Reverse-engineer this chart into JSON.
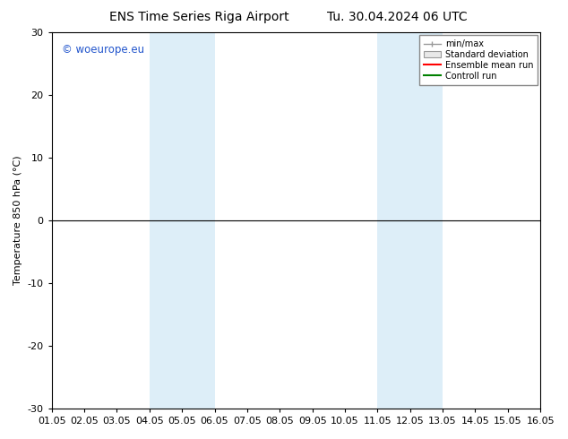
{
  "title_left": "ENS Time Series Riga Airport",
  "title_right": "Tu. 30.04.2024 06 UTC",
  "ylabel": "Temperature 850 hPa (°C)",
  "ylim": [
    -30,
    30
  ],
  "yticks": [
    -30,
    -20,
    -10,
    0,
    10,
    20,
    30
  ],
  "xtick_labels": [
    "01.05",
    "02.05",
    "03.05",
    "04.05",
    "05.05",
    "06.05",
    "07.05",
    "08.05",
    "09.05",
    "10.05",
    "11.05",
    "12.05",
    "13.05",
    "14.05",
    "15.05",
    "16.05"
  ],
  "shade_bands": [
    {
      "xstart_day": 4,
      "xend_day": 6,
      "color": "#ddeef8"
    },
    {
      "xstart_day": 11,
      "xend_day": 13,
      "color": "#ddeef8"
    }
  ],
  "hline_y": 0,
  "legend_labels": [
    "min/max",
    "Standard deviation",
    "Ensemble mean run",
    "Controll run"
  ],
  "legend_colors_line": [
    "#aaaaaa",
    "#aaaaaa",
    "#ff0000",
    "#008000"
  ],
  "watermark": "© woeurope.eu",
  "background_color": "#ffffff",
  "title_fontsize": 10,
  "axis_fontsize": 8,
  "tick_fontsize": 8
}
